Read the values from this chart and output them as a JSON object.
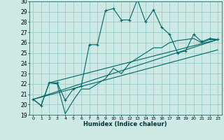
{
  "title": "",
  "xlabel": "Humidex (Indice chaleur)",
  "bg_color": "#cce9e4",
  "grid_color": "#99cccc",
  "line_color": "#006666",
  "ylim": [
    19,
    30
  ],
  "xlim": [
    -0.5,
    23.5
  ],
  "yticks": [
    19,
    20,
    21,
    22,
    23,
    24,
    25,
    26,
    27,
    28,
    29,
    30
  ],
  "xticks": [
    0,
    1,
    2,
    3,
    4,
    5,
    6,
    7,
    8,
    9,
    10,
    11,
    12,
    13,
    14,
    15,
    16,
    17,
    18,
    19,
    20,
    21,
    22,
    23
  ],
  "series1": [
    20.5,
    19.9,
    22.1,
    22.1,
    20.4,
    21.5,
    21.8,
    25.8,
    25.8,
    29.1,
    29.3,
    28.2,
    28.2,
    30.2,
    28.0,
    29.2,
    27.5,
    26.8,
    25.0,
    25.2,
    26.8,
    26.1,
    26.4,
    26.3
  ],
  "series2": [
    20.5,
    19.9,
    22.1,
    22.0,
    19.1,
    20.4,
    21.5,
    21.5,
    22.0,
    22.5,
    23.5,
    23.0,
    24.0,
    24.5,
    25.0,
    25.5,
    25.5,
    26.0,
    26.2,
    26.3,
    26.4,
    26.0,
    26.3,
    26.3
  ],
  "line3": [
    [
      0,
      20.5
    ],
    [
      23,
      26.3
    ]
  ],
  "line4": [
    [
      0,
      20.5
    ],
    [
      23,
      25.3
    ]
  ],
  "line5": [
    [
      2,
      22.1
    ],
    [
      23,
      26.3
    ]
  ]
}
